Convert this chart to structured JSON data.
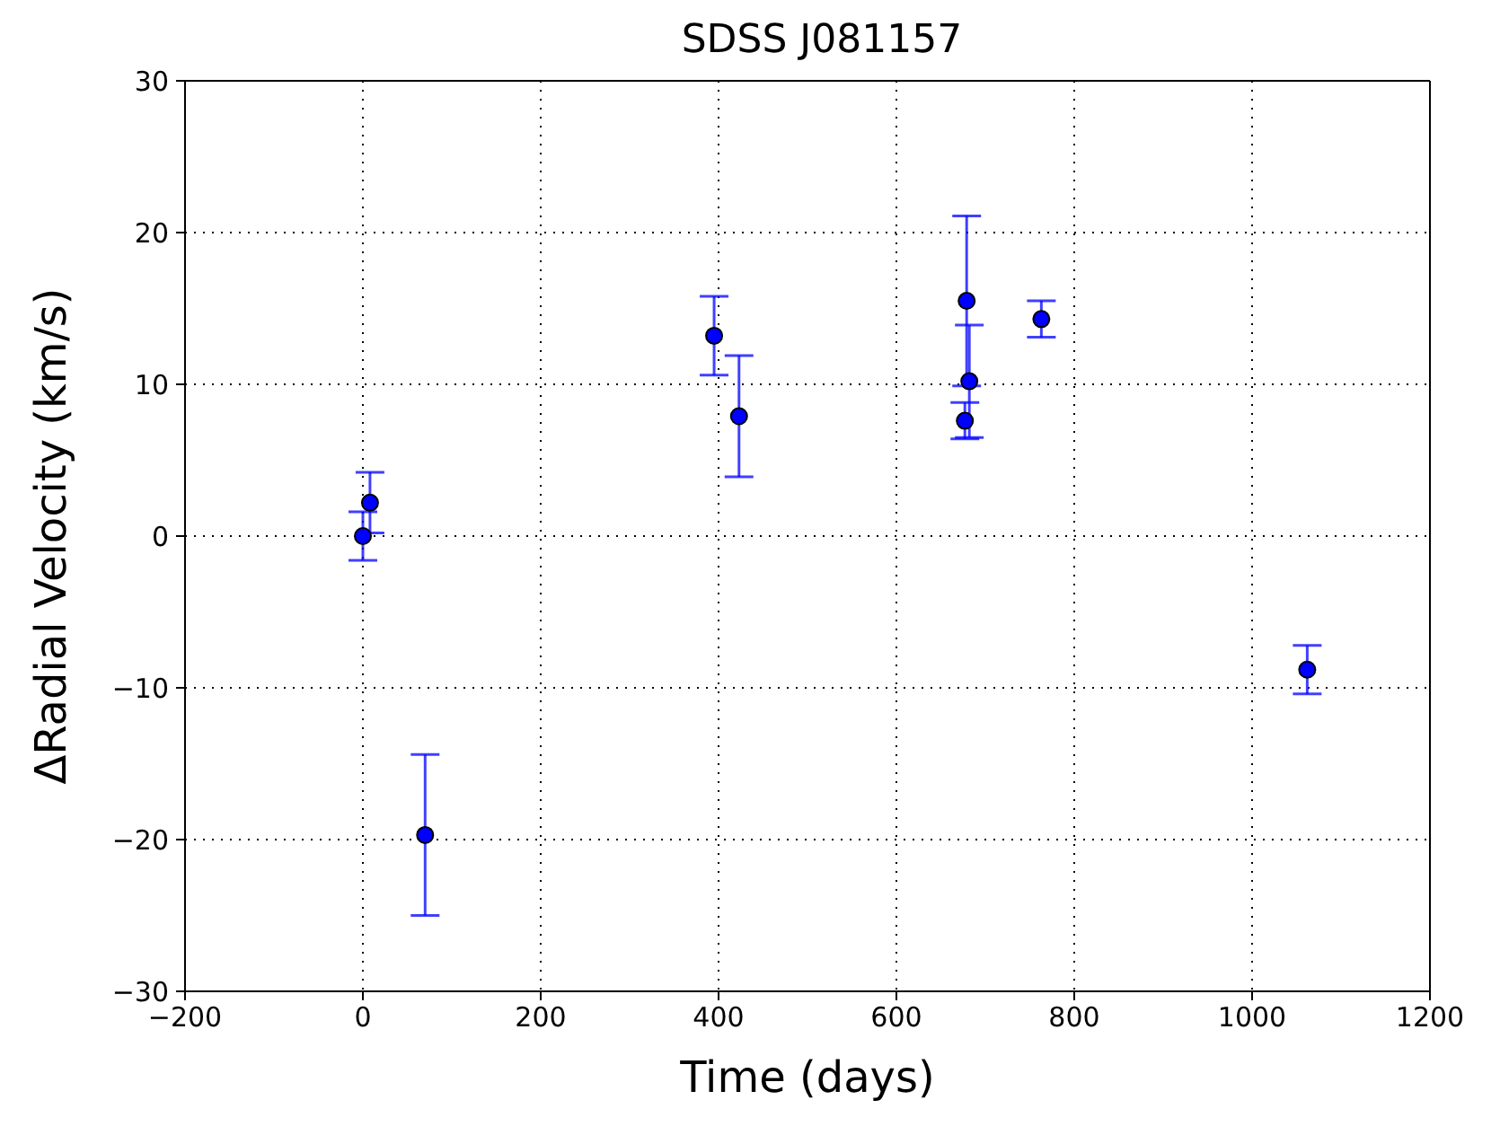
{
  "chart_data": {
    "type": "scatter",
    "title": "SDSS J081157",
    "xlabel": "Time (days)",
    "ylabel": "ΔRadial Velocity (km/s)",
    "x": [
      0,
      8,
      70,
      395,
      423,
      679,
      682,
      677,
      763,
      1062
    ],
    "series": [
      {
        "color": "#0000ff",
        "values": [
          0,
          2.2,
          -19.7,
          13.2,
          7.9,
          15.5,
          10.2,
          7.6,
          14.3,
          -8.8
        ],
        "errors": [
          1.6,
          2.0,
          5.3,
          2.6,
          4.0,
          5.6,
          3.7,
          1.2,
          1.2,
          1.6
        ]
      }
    ],
    "xlim": [
      -200,
      1200
    ],
    "xticks": [
      {
        "value": -200,
        "label": "−200"
      },
      0,
      200,
      400,
      600,
      800,
      1000,
      1200
    ],
    "ylim": [
      -30,
      30
    ],
    "yticks": [
      {
        "value": -30,
        "label": "−30"
      },
      {
        "value": -20,
        "label": "−20"
      },
      {
        "value": -10,
        "label": "−10"
      },
      0,
      10,
      20,
      30
    ],
    "grid": true,
    "marker": "circle"
  }
}
